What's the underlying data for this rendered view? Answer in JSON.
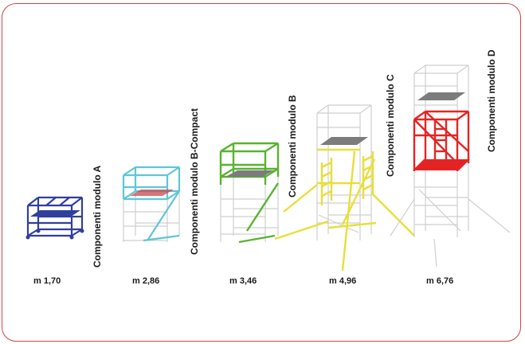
{
  "modules": [
    {
      "label": "Componenti modulo A",
      "color": "#2f3f9e"
    },
    {
      "label": "Componenti modulo B-Compact",
      "color": "#5fc6d6"
    },
    {
      "label": "Componenti modulo B",
      "color": "#58b32f"
    },
    {
      "label": "Componenti modulo C",
      "color": "#e8df3a"
    },
    {
      "label": "Componenti modulo D",
      "color": "#e42424"
    }
  ],
  "heights": [
    {
      "label": "m 1,70"
    },
    {
      "label": "m 2,86"
    },
    {
      "label": "m 3,46"
    },
    {
      "label": "m 4,96"
    },
    {
      "label": "m 6,76"
    }
  ]
}
